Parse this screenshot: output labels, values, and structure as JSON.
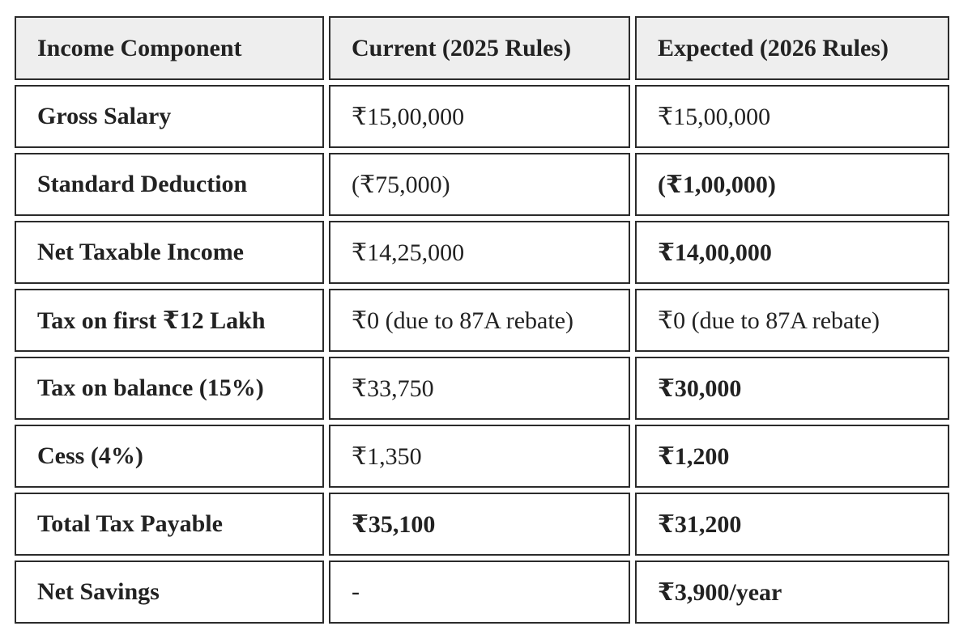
{
  "table": {
    "header": [
      "Income Component",
      "Current (2025 Rules)",
      "Expected (2026 Rules)"
    ],
    "rows": [
      [
        "Gross Salary",
        "₹15,00,000",
        "₹15,00,000"
      ],
      [
        "Standard Deduction",
        "(₹75,000)",
        "(₹1,00,000)"
      ],
      [
        "Net Taxable Income",
        "₹14,25,000",
        "₹14,00,000"
      ],
      [
        "Tax on first ₹12 Lakh",
        "₹0 (due to 87A rebate)",
        "₹0 (due to 87A rebate)"
      ],
      [
        "Tax on balance (15%)",
        "₹33,750",
        "₹30,000"
      ],
      [
        "Cess (4%)",
        "₹1,350",
        "₹1,200"
      ],
      [
        "Total Tax Payable",
        "₹35,100",
        "₹31,200"
      ],
      [
        "Net Savings",
        "-",
        "₹3,900/year"
      ]
    ]
  }
}
